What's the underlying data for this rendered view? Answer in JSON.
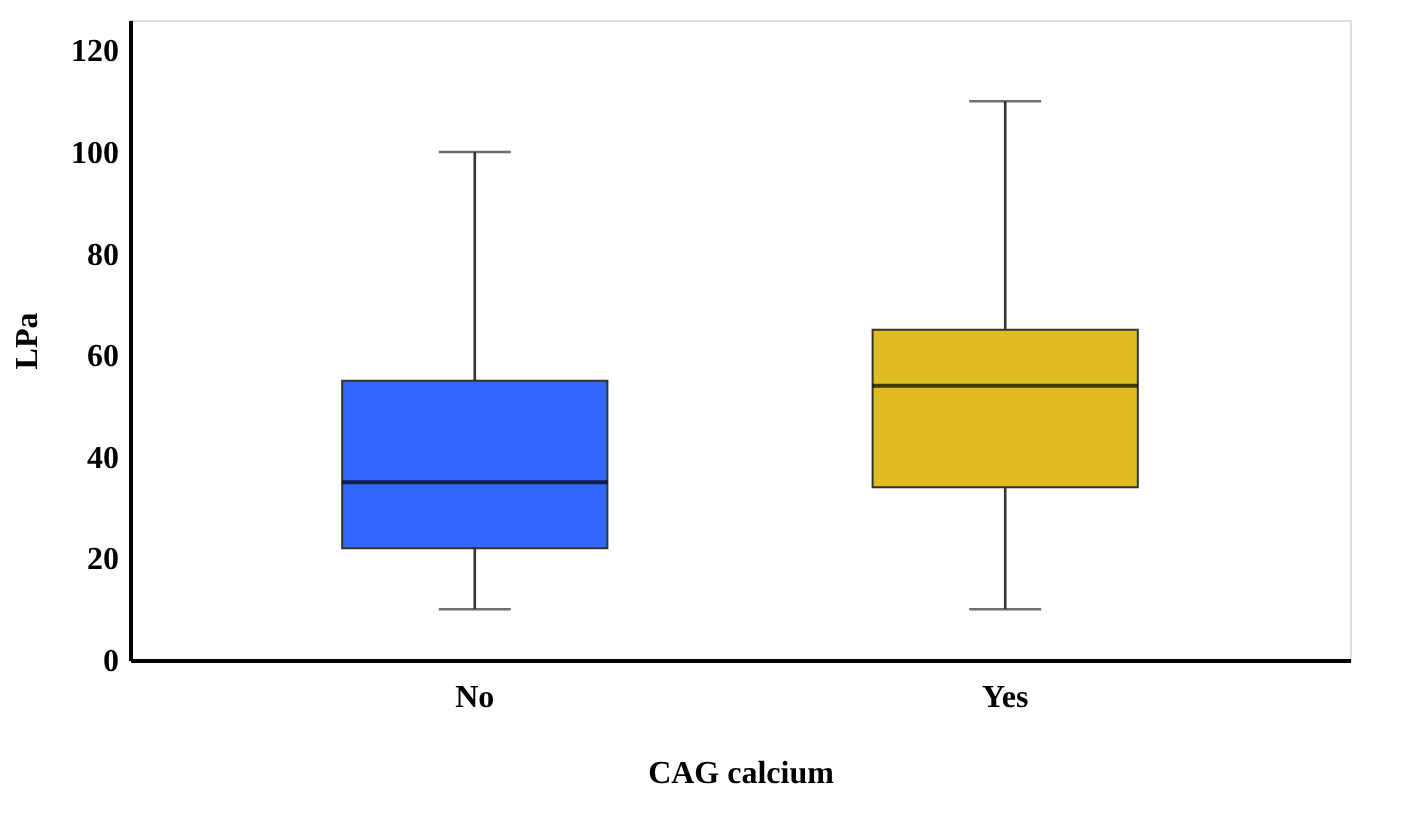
{
  "chart_data": {
    "type": "box",
    "xlabel": "CAG calcium",
    "ylabel": "LPa",
    "categories": [
      "No",
      "Yes"
    ],
    "colors": [
      "#3366ff",
      "#e0bb1f"
    ],
    "boxes": [
      {
        "low": 10,
        "q1": 22,
        "median": 35,
        "q3": 55,
        "high": 100
      },
      {
        "low": 10,
        "q1": 34,
        "median": 54,
        "q3": 65,
        "high": 110
      }
    ],
    "ylim": [
      0,
      126
    ],
    "yticks": [
      0,
      20,
      40,
      60,
      80,
      100,
      120
    ],
    "grid": false,
    "legend": false
  }
}
